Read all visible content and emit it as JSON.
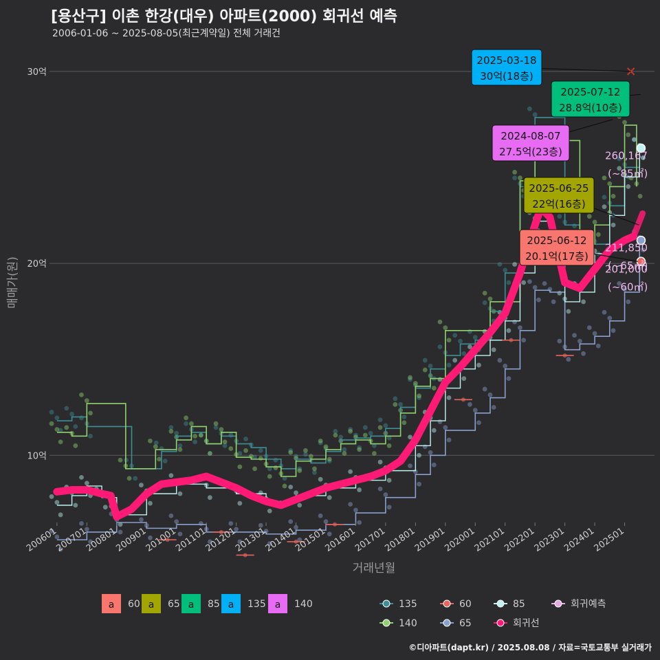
{
  "title": "[용산구] 이촌 한강(대우) 아파트(2000) 회귀선 예측",
  "subtitle": "2006-01-06 ~ 2025-08-05(최근계약일) 전체 거래건",
  "footer": "©디아파트(dapt.kr) / 2025.08.08 / 자료=국토교통부 실거래가",
  "chart_data": {
    "type": "line",
    "xlabel": "거래년월",
    "ylabel": "매매가(원)",
    "x_ticks": [
      "200601",
      "200701",
      "200801",
      "200901",
      "201001",
      "201101",
      "201201",
      "201301",
      "201401",
      "201501",
      "201601",
      "201701",
      "201801",
      "201901",
      "202001",
      "202101",
      "202201",
      "202301",
      "202401",
      "202501"
    ],
    "y_ticks": [
      {
        "value": 10,
        "label": "10억"
      },
      {
        "value": 20,
        "label": "20억"
      },
      {
        "value": 30,
        "label": "30억"
      }
    ],
    "xlim": [
      2005.75,
      2026.0
    ],
    "ylim": [
      6.5,
      31.5
    ],
    "grid": true,
    "colors": {
      "60": "#f8766d",
      "65": "#a3a500",
      "85": "#00bf7d",
      "135": "#00b0f6",
      "140": "#e76bf3",
      "line135": "#3d8f97",
      "line140": "#8fd26e",
      "line60": "#e8655e",
      "line65": "#8aa0cf",
      "line85": "#bff2f2",
      "regression": "#ff1a75",
      "forecast": "#e7a8e7"
    },
    "series": [
      {
        "name": "135",
        "x": [
          2006.0,
          2006.5,
          2007.0,
          2008.5,
          2009.5,
          2010.0,
          2010.5,
          2011.0,
          2011.5,
          2012.0,
          2012.5,
          2013.0,
          2013.5,
          2014.0,
          2014.5,
          2015.0,
          2015.5,
          2016.0,
          2016.5,
          2017.0,
          2017.5,
          2018.0,
          2018.5,
          2019.0,
          2019.5,
          2020.0,
          2020.5,
          2021.0,
          2021.5,
          2022.0,
          2023.0,
          2023.5,
          2024.0,
          2024.5,
          2025.0,
          2025.5
        ],
        "y": [
          11.8,
          12.0,
          11.5,
          9.3,
          10.2,
          11.0,
          11.2,
          10.6,
          11.0,
          10.6,
          10.4,
          9.8,
          9.3,
          9.8,
          9.6,
          10.2,
          10.8,
          10.9,
          11.0,
          11.4,
          12.5,
          13.5,
          14.5,
          15.2,
          15.8,
          16.0,
          17.5,
          19.5,
          24.0,
          27.6,
          22.0,
          21.5,
          21.0,
          23.0,
          25.0,
          26.0
        ]
      },
      {
        "name": "140",
        "x": [
          2006.0,
          2006.5,
          2007.0,
          2008.3,
          2009.3,
          2010.0,
          2010.5,
          2011.0,
          2011.5,
          2012.0,
          2012.5,
          2013.0,
          2013.5,
          2014.0,
          2014.5,
          2015.0,
          2015.5,
          2016.0,
          2016.5,
          2017.0,
          2017.5,
          2018.0,
          2018.5,
          2019.0,
          2020.5,
          2021.5,
          2022.0,
          2023.5,
          2024.0,
          2024.5,
          2025.0,
          2025.4
        ],
        "y": [
          11.2,
          11.0,
          12.7,
          9.3,
          10.3,
          10.8,
          11.5,
          10.6,
          11.2,
          9.9,
          9.8,
          9.4,
          8.9,
          9.7,
          9.8,
          10.3,
          10.6,
          10.8,
          10.6,
          11.0,
          12.2,
          13.6,
          14.0,
          16.5,
          18.0,
          24.3,
          26.4,
          21.0,
          22.0,
          24.0,
          27.2,
          24.0
        ]
      },
      {
        "name": "60",
        "x": [
          2009.7,
          2011.5,
          2012.3,
          2014.0,
          2015.3,
          2019.6,
          2021.2,
          2023.0
        ],
        "y": [
          5.6,
          6.0,
          4.8,
          5.5,
          6.4,
          12.9,
          16.0,
          15.2
        ]
      },
      {
        "name": "65",
        "x": [
          2006.0,
          2007.0,
          2008.0,
          2009.0,
          2010.0,
          2011.0,
          2012.0,
          2013.0,
          2014.0,
          2015.0,
          2016.0,
          2017.0,
          2018.0,
          2018.5,
          2019.0,
          2020.0,
          2020.5,
          2021.0,
          2021.5,
          2022.0,
          2022.5,
          2023.0,
          2023.5,
          2024.0,
          2024.5,
          2025.0,
          2025.5
        ],
        "y": [
          5.6,
          6.0,
          6.5,
          6.2,
          6.4,
          6.0,
          6.0,
          5.9,
          6.1,
          6.4,
          7.0,
          7.8,
          9.0,
          10.0,
          11.3,
          12.2,
          13.0,
          14.5,
          16.5,
          18.6,
          18.5,
          15.5,
          15.8,
          16.2,
          17.0,
          18.5,
          21.2
        ]
      },
      {
        "name": "85",
        "x": [
          2006.0,
          2006.5,
          2007.0,
          2007.5,
          2008.0,
          2009.0,
          2010.0,
          2011.0,
          2012.0,
          2013.0,
          2014.0,
          2015.0,
          2016.0,
          2017.0,
          2018.0,
          2018.5,
          2019.0,
          2019.5,
          2020.0,
          2020.5,
          2021.0,
          2021.5,
          2022.0,
          2022.5,
          2023.0,
          2023.5,
          2024.0,
          2024.5,
          2025.0,
          2025.5
        ],
        "y": [
          7.4,
          7.9,
          8.4,
          7.8,
          6.9,
          8.0,
          8.5,
          8.3,
          8.0,
          7.6,
          7.9,
          8.3,
          8.7,
          9.2,
          10.5,
          11.8,
          13.5,
          14.5,
          15.2,
          16.0,
          17.0,
          19.5,
          22.2,
          21.0,
          18.0,
          18.5,
          20.5,
          22.5,
          24.5,
          26.0
        ]
      },
      {
        "name": "회귀선",
        "x": [
          2006.0,
          2006.5,
          2007.0,
          2007.5,
          2007.8,
          2008.0,
          2008.5,
          2009.0,
          2009.5,
          2010.0,
          2010.5,
          2011.0,
          2011.5,
          2012.0,
          2012.5,
          2013.0,
          2013.5,
          2014.0,
          2014.5,
          2015.0,
          2015.5,
          2016.0,
          2016.5,
          2017.0,
          2017.5,
          2018.0,
          2018.5,
          2019.0,
          2019.5,
          2020.0,
          2020.5,
          2021.0,
          2021.5,
          2022.0,
          2022.2,
          2022.5,
          2023.0,
          2023.5,
          2024.0,
          2024.5,
          2025.0,
          2025.3
        ],
        "y": [
          8.1,
          8.2,
          8.2,
          8.0,
          7.9,
          6.8,
          7.2,
          8.0,
          8.5,
          8.6,
          8.7,
          8.9,
          8.6,
          8.3,
          7.9,
          7.6,
          7.4,
          7.7,
          8.0,
          8.3,
          8.5,
          8.7,
          8.9,
          9.2,
          9.7,
          10.8,
          12.3,
          13.8,
          14.6,
          15.5,
          16.4,
          17.4,
          19.5,
          22.0,
          22.9,
          22.4,
          19.0,
          18.7,
          19.7,
          20.7,
          21.2,
          21.4
        ]
      },
      {
        "name": "회귀예측",
        "x": [
          2025.3,
          2025.6
        ],
        "y": [
          21.4,
          22.6
        ]
      }
    ],
    "annotations": [
      {
        "date": "2025-03-18",
        "price": "30억(18층)",
        "area": "135",
        "x": 2025.21,
        "y": 30.0
      },
      {
        "date": "2025-07-12",
        "price": "28.8억(10층)",
        "area": "85",
        "x": 2025.53,
        "y": 28.8
      },
      {
        "date": "2024-08-07",
        "price": "27.5억(23층)",
        "area": "140",
        "x": 2024.6,
        "y": 27.5
      },
      {
        "date": "2025-06-25",
        "price": "22억(16층)",
        "area": "65",
        "x": 2025.48,
        "y": 22.0
      },
      {
        "date": "2025-06-12",
        "price": "20.1억(17층)",
        "area": "60",
        "x": 2025.44,
        "y": 20.1
      }
    ],
    "end_labels": [
      {
        "value": "260,167",
        "sub": "(~85㎡)",
        "y": 26.0
      },
      {
        "value": "211,850",
        "sub": "(~65㎡)",
        "y": 21.2
      },
      {
        "value": "201,000",
        "sub": "(~60㎡)",
        "y": 20.1
      }
    ],
    "legend_boxes": [
      {
        "glyph": "a",
        "label": "60",
        "key": "60"
      },
      {
        "glyph": "a",
        "label": "65",
        "key": "65"
      },
      {
        "glyph": "a",
        "label": "85",
        "key": "85"
      },
      {
        "glyph": "a",
        "label": "135",
        "key": "135"
      },
      {
        "glyph": "a",
        "label": "140",
        "key": "140"
      }
    ],
    "legend_lines": [
      {
        "label": "135",
        "key": "line135"
      },
      {
        "label": "60",
        "key": "line60"
      },
      {
        "label": "85",
        "key": "line85"
      },
      {
        "label": "회귀예측",
        "key": "forecast"
      },
      {
        "label": "140",
        "key": "line140"
      },
      {
        "label": "65",
        "key": "line65"
      },
      {
        "label": "회귀선",
        "key": "regression"
      }
    ]
  }
}
